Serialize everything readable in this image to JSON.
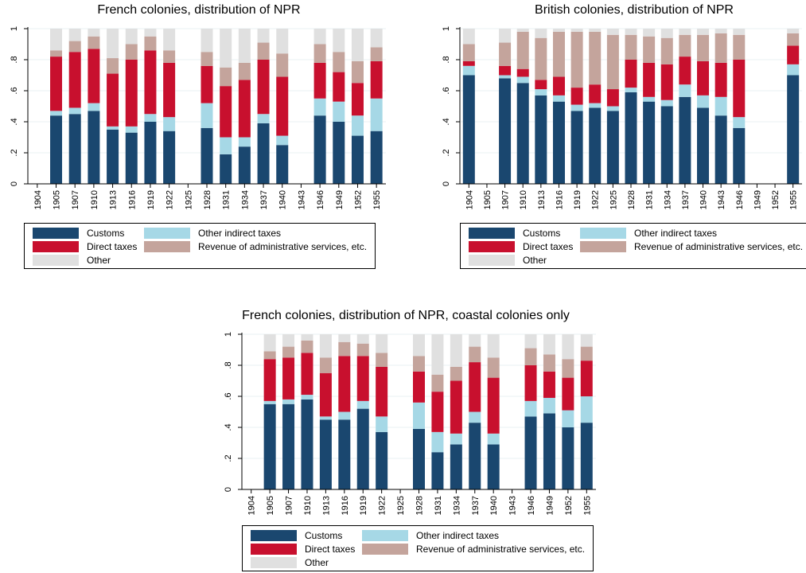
{
  "legend_labels": {
    "customs": "Customs",
    "other_indirect": "Other indirect taxes",
    "direct": "Direct taxes",
    "admin": "Revenue of administrative services, etc.",
    "other": "Other"
  },
  "colors": {
    "customs": "#1a476f",
    "other_indirect": "#a6d8e6",
    "direct": "#c8102e",
    "admin": "#c4a49c",
    "other": "#e0e0e0"
  },
  "chart_data": [
    {
      "type": "bar",
      "stacked": true,
      "title": "French colonies, distribution of NPR",
      "categories": [
        "1904",
        "1905",
        "1907",
        "1910",
        "1913",
        "1916",
        "1919",
        "1922",
        "1925",
        "1928",
        "1931",
        "1934",
        "1937",
        "1940",
        "1943",
        "1946",
        "1949",
        "1952",
        "1955"
      ],
      "yticks": [
        "0",
        ".2",
        ".4",
        ".6",
        ".8",
        "1"
      ],
      "ylim": [
        0,
        1
      ],
      "series": [
        {
          "name": "Customs",
          "key": "customs",
          "values": [
            null,
            0.44,
            0.45,
            0.47,
            0.35,
            0.33,
            0.4,
            0.34,
            null,
            0.36,
            0.19,
            0.24,
            0.39,
            0.25,
            null,
            0.44,
            0.4,
            0.31,
            0.34
          ]
        },
        {
          "name": "Other indirect taxes",
          "key": "other_indirect",
          "values": [
            null,
            0.03,
            0.04,
            0.05,
            0.02,
            0.04,
            0.05,
            0.09,
            null,
            0.16,
            0.11,
            0.06,
            0.06,
            0.06,
            null,
            0.11,
            0.13,
            0.13,
            0.21
          ]
        },
        {
          "name": "Direct taxes",
          "key": "direct",
          "values": [
            null,
            0.35,
            0.36,
            0.35,
            0.34,
            0.43,
            0.41,
            0.35,
            null,
            0.24,
            0.33,
            0.37,
            0.35,
            0.38,
            null,
            0.23,
            0.19,
            0.21,
            0.24
          ]
        },
        {
          "name": "Revenue of administrative services, etc.",
          "key": "admin",
          "values": [
            null,
            0.04,
            0.07,
            0.08,
            0.1,
            0.1,
            0.09,
            0.08,
            null,
            0.09,
            0.12,
            0.11,
            0.11,
            0.15,
            null,
            0.12,
            0.13,
            0.14,
            0.09
          ]
        },
        {
          "name": "Other",
          "key": "other",
          "values": [
            null,
            0.14,
            0.08,
            0.05,
            0.19,
            0.1,
            0.05,
            0.14,
            null,
            0.15,
            0.25,
            0.22,
            0.09,
            0.16,
            null,
            0.1,
            0.15,
            0.21,
            0.12
          ]
        }
      ]
    },
    {
      "type": "bar",
      "stacked": true,
      "title": "British colonies, distribution of NPR",
      "categories": [
        "1904",
        "1905",
        "1907",
        "1910",
        "1913",
        "1916",
        "1919",
        "1922",
        "1925",
        "1928",
        "1931",
        "1934",
        "1937",
        "1940",
        "1943",
        "1946",
        "1949",
        "1952",
        "1955"
      ],
      "yticks": [
        "0",
        ".2",
        ".4",
        ".6",
        ".8",
        "1"
      ],
      "ylim": [
        0,
        1
      ],
      "series": [
        {
          "name": "Customs",
          "key": "customs",
          "values": [
            0.7,
            null,
            0.68,
            0.65,
            0.57,
            0.53,
            0.47,
            0.49,
            0.47,
            0.59,
            0.53,
            0.5,
            0.56,
            0.49,
            0.44,
            0.36,
            null,
            null,
            0.7
          ]
        },
        {
          "name": "Other indirect taxes",
          "key": "other_indirect",
          "values": [
            0.06,
            null,
            0.02,
            0.04,
            0.04,
            0.04,
            0.04,
            0.03,
            0.03,
            0.03,
            0.03,
            0.04,
            0.08,
            0.08,
            0.12,
            0.07,
            null,
            null,
            0.07
          ]
        },
        {
          "name": "Direct taxes",
          "key": "direct",
          "values": [
            0.03,
            null,
            0.06,
            0.05,
            0.06,
            0.12,
            0.11,
            0.12,
            0.11,
            0.18,
            0.22,
            0.23,
            0.18,
            0.22,
            0.22,
            0.37,
            null,
            null,
            0.12
          ]
        },
        {
          "name": "Revenue of administrative services, etc.",
          "key": "admin",
          "values": [
            0.11,
            null,
            0.15,
            0.24,
            0.27,
            0.29,
            0.36,
            0.34,
            0.35,
            0.16,
            0.17,
            0.17,
            0.14,
            0.17,
            0.19,
            0.16,
            null,
            null,
            0.08
          ]
        },
        {
          "name": "Other",
          "key": "other",
          "values": [
            0.1,
            null,
            0.09,
            0.02,
            0.06,
            0.02,
            0.02,
            0.02,
            0.04,
            0.04,
            0.05,
            0.06,
            0.04,
            0.04,
            0.03,
            0.04,
            null,
            null,
            0.03
          ]
        }
      ]
    },
    {
      "type": "bar",
      "stacked": true,
      "title": "French colonies, distribution of NPR, coastal colonies only",
      "categories": [
        "1904",
        "1905",
        "1907",
        "1910",
        "1913",
        "1916",
        "1919",
        "1922",
        "1925",
        "1928",
        "1931",
        "1934",
        "1937",
        "1940",
        "1943",
        "1946",
        "1949",
        "1952",
        "1955"
      ],
      "yticks": [
        "0",
        ".2",
        ".4",
        ".6",
        ".8",
        "1"
      ],
      "ylim": [
        0,
        1
      ],
      "series": [
        {
          "name": "Customs",
          "key": "customs",
          "values": [
            null,
            0.55,
            0.55,
            0.58,
            0.45,
            0.45,
            0.52,
            0.37,
            null,
            0.39,
            0.24,
            0.29,
            0.43,
            0.29,
            null,
            0.47,
            0.49,
            0.4,
            0.43
          ]
        },
        {
          "name": "Other indirect taxes",
          "key": "other_indirect",
          "values": [
            null,
            0.02,
            0.03,
            0.03,
            0.02,
            0.05,
            0.05,
            0.1,
            null,
            0.17,
            0.13,
            0.07,
            0.07,
            0.07,
            null,
            0.1,
            0.1,
            0.11,
            0.17
          ]
        },
        {
          "name": "Direct taxes",
          "key": "direct",
          "values": [
            null,
            0.27,
            0.27,
            0.27,
            0.28,
            0.36,
            0.29,
            0.32,
            null,
            0.2,
            0.26,
            0.34,
            0.32,
            0.36,
            null,
            0.23,
            0.17,
            0.21,
            0.23
          ]
        },
        {
          "name": "Revenue of administrative services, etc.",
          "key": "admin",
          "values": [
            null,
            0.05,
            0.07,
            0.08,
            0.1,
            0.09,
            0.08,
            0.09,
            null,
            0.1,
            0.11,
            0.09,
            0.1,
            0.13,
            null,
            0.11,
            0.11,
            0.12,
            0.09
          ]
        },
        {
          "name": "Other",
          "key": "other",
          "values": [
            null,
            0.11,
            0.08,
            0.04,
            0.15,
            0.05,
            0.06,
            0.12,
            null,
            0.14,
            0.26,
            0.21,
            0.08,
            0.15,
            null,
            0.09,
            0.13,
            0.16,
            0.08
          ]
        }
      ]
    }
  ]
}
